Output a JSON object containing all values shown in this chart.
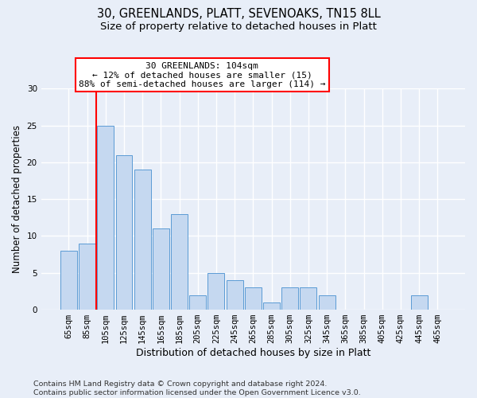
{
  "title1": "30, GREENLANDS, PLATT, SEVENOAKS, TN15 8LL",
  "title2": "Size of property relative to detached houses in Platt",
  "xlabel": "Distribution of detached houses by size in Platt",
  "ylabel": "Number of detached properties",
  "categories": [
    "65sqm",
    "85sqm",
    "105sqm",
    "125sqm",
    "145sqm",
    "165sqm",
    "185sqm",
    "205sqm",
    "225sqm",
    "245sqm",
    "265sqm",
    "285sqm",
    "305sqm",
    "325sqm",
    "345sqm",
    "365sqm",
    "385sqm",
    "405sqm",
    "425sqm",
    "445sqm",
    "465sqm"
  ],
  "values": [
    8,
    9,
    25,
    21,
    19,
    11,
    13,
    2,
    5,
    4,
    3,
    1,
    3,
    3,
    2,
    0,
    0,
    0,
    0,
    2,
    0
  ],
  "bar_color": "#c5d8f0",
  "bar_edge_color": "#5b9bd5",
  "background_color": "#e8eef8",
  "grid_color": "#ffffff",
  "annotation_text": "30 GREENLANDS: 104sqm\n← 12% of detached houses are smaller (15)\n88% of semi-detached houses are larger (114) →",
  "annotation_box_color": "white",
  "annotation_border_color": "red",
  "vline_color": "red",
  "vline_x_index": 2,
  "ylim": [
    0,
    30
  ],
  "yticks": [
    0,
    5,
    10,
    15,
    20,
    25,
    30
  ],
  "footer": "Contains HM Land Registry data © Crown copyright and database right 2024.\nContains public sector information licensed under the Open Government Licence v3.0.",
  "title1_fontsize": 10.5,
  "title2_fontsize": 9.5,
  "xlabel_fontsize": 9.0,
  "ylabel_fontsize": 8.5,
  "tick_fontsize": 7.5,
  "footer_fontsize": 6.8
}
